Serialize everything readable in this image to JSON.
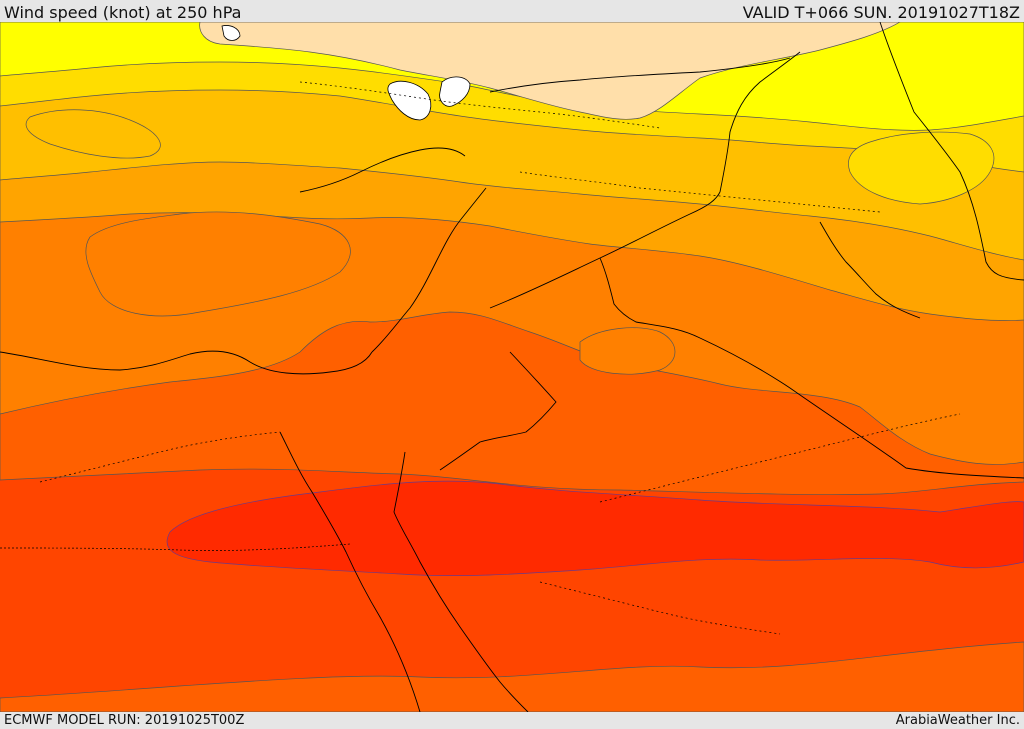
{
  "header": {
    "title": "Wind speed (knot) at 250 hPa",
    "valid_time": "VALID T+066 SUN. 20191027T18Z"
  },
  "footer": {
    "model_run": "ECMWF MODEL RUN: 20191025T00Z",
    "credit": "ArabiaWeather Inc."
  },
  "map": {
    "colors": {
      "band_peach": "#ffdfaa",
      "band_yellow": "#ffff00",
      "band_gold": "#ffdd00",
      "band_amber": "#ffbf00",
      "band_orange_light": "#ffa400",
      "band_orange": "#ff8000",
      "band_orange_red": "#ff6000",
      "band_red_orange": "#ff4500",
      "band_red": "#ff2a00",
      "water_white": "#ffffff",
      "coastline": "#000000",
      "contour_line": "#555555"
    }
  }
}
